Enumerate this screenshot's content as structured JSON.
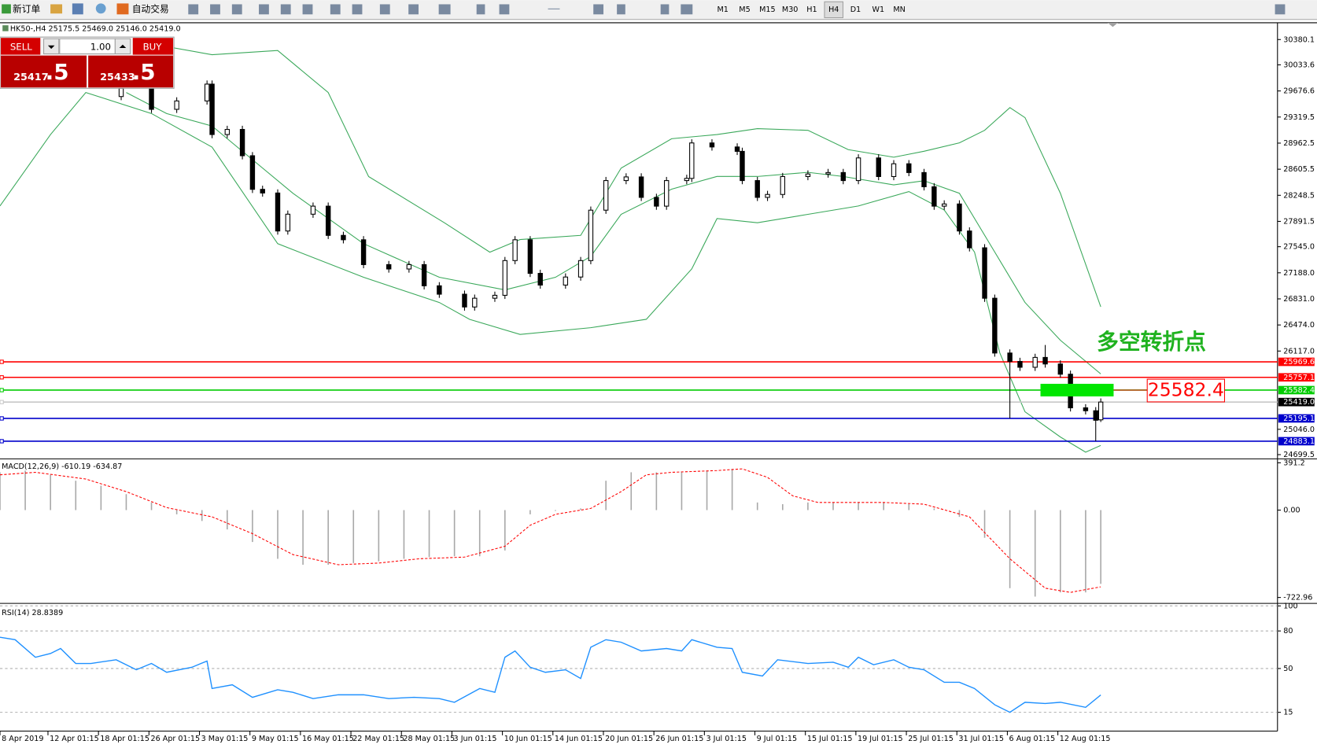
{
  "toolbar": {
    "new_order": "新订单",
    "auto_trading": "自动交易",
    "timeframes": [
      "M1",
      "M5",
      "M15",
      "M30",
      "H1",
      "H4",
      "D1",
      "W1",
      "MN"
    ],
    "active_timeframe": "H4"
  },
  "order_panel": {
    "sell": "SELL",
    "buy": "BUY",
    "volume": "1.00",
    "bid_main": "25417",
    "bid_frac": ".5",
    "ask_main": "25433",
    "ask_frac": ".5"
  },
  "chart_data": [
    {
      "type": "candlestick",
      "title": "HK50-,H4  25175.5 25469.0 25146.0 25419.0",
      "xlim": [
        0,
        253
      ],
      "ylim": [
        24653,
        30598
      ],
      "yticks": [
        30380.1,
        30033.6,
        29676.6,
        29319.5,
        28962.5,
        28605.5,
        28248.5,
        27891.5,
        {
          "value": 27545.0,
          "label": "27545.0"
        },
        {
          "value": 27188.0,
          "label": "27188.0"
        },
        {
          "value": 26831.0,
          "label": "26831.0"
        },
        {
          "value": 26474.0,
          "label": "26474.0"
        },
        {
          "value": 26117.0,
          "label": "26117.0"
        },
        {
          "value": 25046.0,
          "label": "25046.0"
        },
        24699.5
      ],
      "up_color": "#ffffff",
      "down_color": "#000000",
      "x": [
        24,
        30,
        35,
        41,
        42,
        45,
        48,
        50,
        52,
        55,
        57,
        62,
        65,
        68,
        72,
        77,
        81,
        84,
        87,
        92,
        94,
        98,
        100,
        102,
        105,
        107,
        112,
        115,
        117,
        120,
        124,
        127,
        130,
        132,
        136,
        137,
        141,
        146,
        147,
        150,
        152,
        155,
        160,
        164,
        167,
        170,
        174,
        177,
        180,
        183,
        185,
        187,
        190,
        192,
        195,
        197,
        200,
        202,
        205,
        207,
        210,
        212,
        215,
        217,
        218
      ],
      "open": [
        29600,
        29713,
        29425,
        29540,
        29770,
        29080,
        29150,
        28790,
        28330,
        28280,
        27760,
        27990,
        28100,
        27700,
        27640,
        27300,
        27240,
        27300,
        27010,
        26895,
        26720,
        26840,
        26880,
        27355,
        27640,
        27180,
        27020,
        27130,
        27355,
        28045,
        28450,
        28500,
        28220,
        28100,
        28450,
        28480,
        28965,
        28910,
        28850,
        28450,
        28220,
        28260,
        28505,
        28540,
        28560,
        28450,
        28760,
        28505,
        28680,
        28560,
        28365,
        28100,
        28130,
        27760,
        27530,
        26840,
        26090,
        25975,
        25895,
        26030,
        25940,
        25800,
        25340,
        25300,
        25175.5
      ],
      "high": [
        29763,
        29763,
        29590,
        29820,
        29820,
        29200,
        29200,
        28840,
        28380,
        28330,
        28040,
        28150,
        28150,
        27750,
        27690,
        27350,
        27350,
        27350,
        27060,
        26945,
        26890,
        26930,
        27405,
        27690,
        27690,
        27230,
        27180,
        27405,
        28095,
        28500,
        28550,
        28550,
        28270,
        28500,
        28530,
        29015,
        29015,
        28960,
        28900,
        28500,
        28310,
        28555,
        28590,
        28610,
        28610,
        28810,
        28810,
        28730,
        28730,
        28610,
        28415,
        28180,
        28180,
        27810,
        27580,
        26890,
        26140,
        26025,
        26080,
        26200,
        25990,
        25850,
        25390,
        25350,
        25469.0
      ],
      "low": [
        29550,
        29375,
        29375,
        29490,
        29030,
        29030,
        28740,
        28280,
        28230,
        27710,
        27710,
        27940,
        27650,
        27590,
        27250,
        27190,
        27190,
        26960,
        26845,
        26670,
        26670,
        26790,
        26830,
        27305,
        27130,
        26970,
        26970,
        27080,
        27305,
        27995,
        28400,
        28170,
        28050,
        28050,
        28400,
        28430,
        28860,
        28800,
        28400,
        28170,
        28170,
        28210,
        28455,
        28490,
        28400,
        28400,
        28455,
        28455,
        28510,
        28315,
        28050,
        28050,
        27710,
        27480,
        26790,
        26040,
        25195,
        25845,
        25845,
        25890,
        25750,
        25290,
        25250,
        24883,
        25146.0
      ],
      "close": [
        29713,
        29425,
        29540,
        29770,
        29080,
        29150,
        28790,
        28330,
        28280,
        27760,
        27990,
        28100,
        27700,
        27640,
        27300,
        27240,
        27300,
        27010,
        26895,
        26720,
        26840,
        26880,
        27355,
        27640,
        27180,
        27020,
        27130,
        27355,
        28045,
        28450,
        28500,
        28220,
        28100,
        28450,
        28480,
        28965,
        28910,
        28850,
        28450,
        28220,
        28260,
        28505,
        28540,
        28560,
        28450,
        28760,
        28505,
        28680,
        28560,
        28365,
        28100,
        28130,
        27760,
        27530,
        26840,
        26090,
        25975,
        25895,
        26030,
        25940,
        25800,
        25340,
        25300,
        25170,
        25419.0
      ],
      "bands": [
        {
          "color": "#3aa85a",
          "x": [
            28,
            42,
            55,
            65,
            73,
            88,
            97,
            103,
            115,
            123,
            133,
            142,
            150,
            160,
            168,
            177,
            183,
            190,
            195,
            200,
            203,
            210,
            218
          ],
          "values": [
            30345,
            30173,
            30230,
            29655,
            28505,
            27873,
            27470,
            27643,
            27700,
            28620,
            29023,
            29080,
            29161,
            29138,
            28873,
            28770,
            28851,
            28966,
            29138,
            29448,
            29311,
            28276,
            26723
          ]
        },
        {
          "color": "#3aa85a",
          "x": [
            25,
            33,
            42,
            50,
            58,
            72,
            87,
            100,
            110,
            117,
            123,
            133,
            142,
            150,
            160,
            167,
            177,
            183,
            190,
            197,
            203,
            210,
            218
          ],
          "values": [
            29655,
            29368,
            29196,
            28736,
            28276,
            27586,
            27126,
            26954,
            27126,
            27413,
            27988,
            28333,
            28506,
            28506,
            28563,
            28506,
            28391,
            28448,
            28276,
            27471,
            26781,
            26264,
            25804
          ]
        },
        {
          "color": "#3aa85a",
          "x": [
            0,
            10,
            17,
            30,
            42,
            55,
            72,
            87,
            93,
            103,
            117,
            128,
            137,
            142,
            150,
            160,
            170,
            180,
            187,
            193,
            198,
            203,
            210,
            215,
            218
          ],
          "values": [
            28103,
            29080,
            29655,
            29368,
            28908,
            27586,
            27126,
            26781,
            26551,
            26344,
            26436,
            26551,
            27241,
            27930,
            27873,
            27988,
            28103,
            28299,
            28046,
            27471,
            26091,
            25286,
            24941,
            24734,
            24826
          ]
        }
      ],
      "hlines": [
        {
          "price": 25969.6,
          "color": "#ff0000",
          "box": "#ff0000"
        },
        {
          "price": 25757.1,
          "color": "#ff0000",
          "box": "#ff0000"
        },
        {
          "price": 25582.4,
          "color": "#00cc00",
          "box": "#00cc00"
        },
        {
          "price": {
            "value": 25419.0,
            "label": "25419.0"
          },
          "color": "#c8c8c8",
          "box": "#000000"
        },
        {
          "price": 25195.1,
          "color": "#0000cc",
          "box": "#0000cc"
        },
        {
          "price": 24883.1,
          "color": "#0000cc",
          "box": "#0000cc"
        }
      ],
      "marker": {
        "label": "多空转折点",
        "price": 25582.4,
        "label_color": "#1fb21f",
        "zone_color": "#00e600",
        "box_color": "#ff0000"
      }
    },
    {
      "type": "macd",
      "title": "MACD(12,26,9) -610.19 -634.87",
      "xlim": [
        0,
        253
      ],
      "ylim": [
        -758,
        410
      ],
      "yticks": [
        391.2,
        {
          "value": 0,
          "label": "0.00"
        },
        -722.96
      ],
      "histogram": {
        "color": "#a8a8a8",
        "x": [
          0,
          5,
          10,
          15,
          20,
          25,
          30,
          35,
          40,
          45,
          50,
          55,
          60,
          65,
          70,
          75,
          80,
          85,
          90,
          95,
          100,
          105,
          110,
          115,
          120,
          125,
          130,
          135,
          140,
          145,
          150,
          155,
          160,
          165,
          170,
          175,
          180,
          185,
          190,
          195,
          200,
          205,
          210,
          215,
          218
        ],
        "values": [
          313,
          327,
          292,
          243,
          202,
          132,
          63,
          -35,
          -90,
          -160,
          -264,
          -403,
          -452,
          -452,
          -438,
          -424,
          -403,
          -389,
          -382,
          -382,
          -334,
          -35,
          -7,
          14,
          243,
          313,
          313,
          313,
          327,
          341,
          63,
          49,
          63,
          63,
          63,
          63,
          49,
          14,
          -56,
          -229,
          -646,
          -716,
          -681,
          -681,
          -610.19
        ]
      },
      "signal": {
        "color": "#ff0000",
        "x": [
          0,
          7,
          17,
          25,
          33,
          42,
          50,
          58,
          67,
          75,
          83,
          92,
          100,
          105,
          110,
          117,
          123,
          128,
          133,
          142,
          147,
          152,
          157,
          162,
          167,
          175,
          183,
          192,
          200,
          207,
          212,
          218
        ],
        "values": [
          292,
          313,
          257,
          153,
          21,
          -56,
          -195,
          -368,
          -452,
          -438,
          -403,
          -389,
          -299,
          -125,
          -35,
          14,
          153,
          292,
          313,
          327,
          341,
          271,
          118,
          63,
          63,
          63,
          49,
          -56,
          -403,
          -646,
          -681,
          -634.87
        ]
      }
    },
    {
      "type": "line",
      "title": "RSI(14) 28.8389",
      "xlim": [
        0,
        253
      ],
      "ylim": [
        0,
        100
      ],
      "yticks": [
        100,
        80,
        50,
        15
      ],
      "grid": true,
      "color": "#1e90ff",
      "x": [
        0,
        3,
        7,
        10,
        12,
        15,
        18,
        23,
        27,
        30,
        33,
        38,
        41,
        42,
        46,
        50,
        55,
        58,
        62,
        67,
        72,
        77,
        82,
        87,
        90,
        95,
        98,
        100,
        102,
        105,
        108,
        112,
        115,
        117,
        120,
        123,
        127,
        132,
        135,
        137,
        142,
        145,
        147,
        151,
        154,
        160,
        165,
        168,
        170,
        173,
        177,
        180,
        183,
        187,
        190,
        193,
        197,
        200,
        203,
        207,
        210,
        215,
        218
      ],
      "values": [
        75,
        73,
        59,
        62,
        66,
        54,
        54,
        57,
        49,
        54,
        47,
        51,
        56,
        34,
        37,
        27,
        33,
        31,
        26,
        29,
        29,
        26,
        27,
        26,
        23,
        34,
        31,
        59,
        64,
        51,
        47,
        49,
        42,
        67,
        73,
        71,
        64,
        66,
        64,
        73,
        67,
        66,
        47,
        44,
        57,
        54,
        55,
        51,
        59,
        53,
        57,
        51,
        49,
        39,
        39,
        34,
        21,
        15,
        23,
        22,
        23,
        19,
        28.8389
      ],
      "xticks": [
        {
          "value": 0,
          "label": "8 Apr 2019"
        },
        {
          "value": 9.5,
          "label": "12 Apr 01:15"
        },
        {
          "value": 19.5,
          "label": "18 Apr 01:15"
        },
        {
          "value": 29.5,
          "label": "26 Apr 01:15"
        },
        {
          "value": 39.5,
          "label": "3 May 01:15"
        },
        {
          "value": 49.5,
          "label": "9 May 01:15"
        },
        {
          "value": 59.5,
          "label": "16 May 01:15"
        },
        {
          "value": 69.5,
          "label": "22 May 01:15"
        },
        {
          "value": 79.5,
          "label": "28 May 01:15"
        },
        {
          "value": 89.5,
          "label": "3 Jun 01:15"
        },
        {
          "value": 99.5,
          "label": "10 Jun 01:15"
        },
        {
          "value": 109.5,
          "label": "14 Jun 01:15"
        },
        {
          "value": 119.5,
          "label": "20 Jun 01:15"
        },
        {
          "value": 129.5,
          "label": "26 Jun 01:15"
        },
        {
          "value": 139.5,
          "label": "3 Jul 01:15"
        },
        {
          "value": 149.5,
          "label": "9 Jul 01:15"
        },
        {
          "value": 159.5,
          "label": "15 Jul 01:15"
        },
        {
          "value": 169.5,
          "label": "19 Jul 01:15"
        },
        {
          "value": 179.5,
          "label": "25 Jul 01:15"
        },
        {
          "value": 189.5,
          "label": "31 Jul 01:15"
        },
        {
          "value": 199.5,
          "label": "6 Aug 01:15"
        },
        {
          "value": 209.5,
          "label": "12 Aug 01:15"
        }
      ]
    }
  ]
}
